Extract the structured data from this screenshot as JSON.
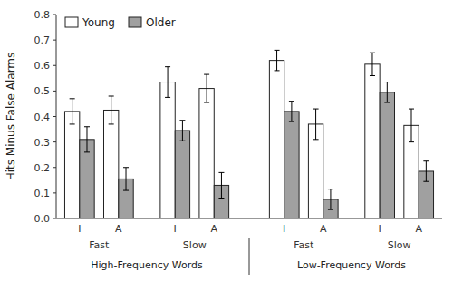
{
  "chart_data": {
    "type": "bar",
    "ylabel": "Hits Minus False Alarms",
    "categories": [
      "I",
      "A",
      "I",
      "A",
      "I",
      "A",
      "I",
      "A"
    ],
    "series": [
      {
        "name": "Young",
        "color": "#FFFFFF",
        "values": [
          0.42,
          0.425,
          0.535,
          0.51,
          0.62,
          0.37,
          0.605,
          0.365
        ],
        "errors": [
          0.05,
          0.055,
          0.06,
          0.055,
          0.04,
          0.06,
          0.045,
          0.065
        ]
      },
      {
        "name": "Older",
        "color": "#A0A0A0",
        "values": [
          0.31,
          0.155,
          0.345,
          0.13,
          0.42,
          0.075,
          0.495,
          0.185
        ],
        "errors": [
          0.05,
          0.045,
          0.04,
          0.05,
          0.04,
          0.04,
          0.04,
          0.04
        ]
      }
    ],
    "rate_labels": [
      "Fast",
      "Slow",
      "Fast",
      "Slow"
    ],
    "section_labels": [
      "High-Frequency Words",
      "Low-Frequency Words"
    ],
    "ylim": [
      0.0,
      0.8
    ],
    "yticks": [
      {
        "value": 0.0,
        "label": "0.0"
      },
      0.1,
      0.2,
      0.3,
      0.4,
      0.5,
      0.6,
      0.7,
      0.8
    ],
    "grid": false,
    "legend": "upper left"
  }
}
